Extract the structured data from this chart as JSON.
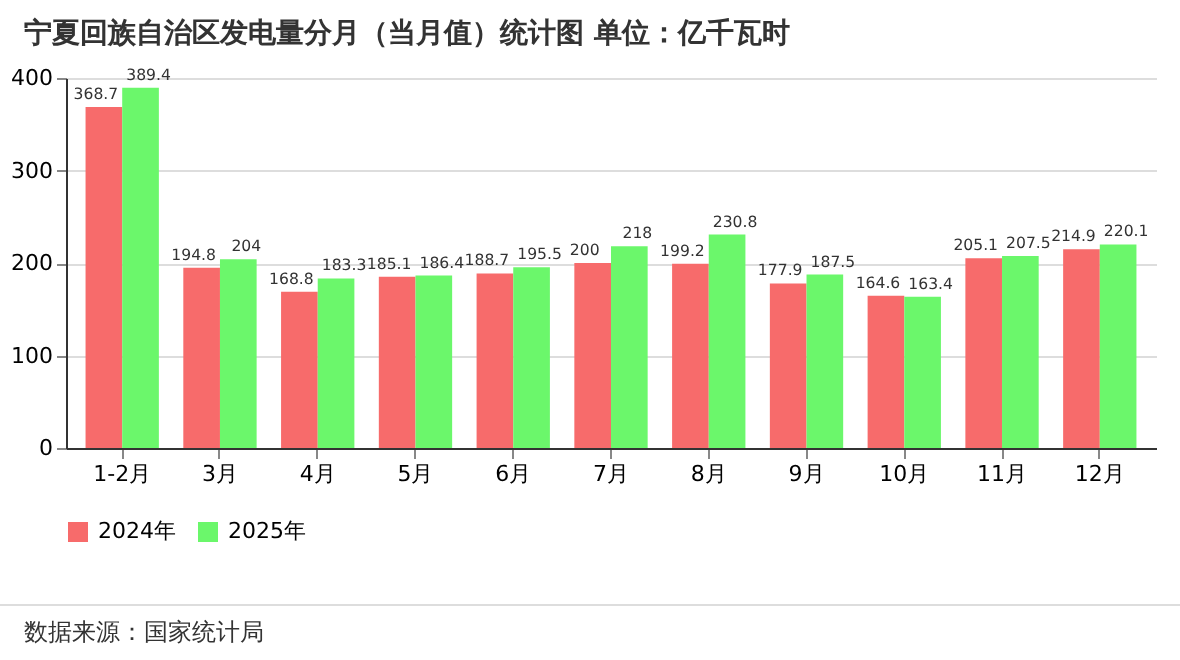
{
  "chart_data": {
    "type": "bar",
    "title": "宁夏回族自治区发电量分月（当月值）统计图 单位：亿千瓦时",
    "categories": [
      "1-2月",
      "3月",
      "4月",
      "5月",
      "6月",
      "7月",
      "8月",
      "9月",
      "10月",
      "11月",
      "12月"
    ],
    "series": [
      {
        "name": "2024年",
        "color": "#f76b6b",
        "values": [
          368.7,
          194.8,
          168.8,
          185.1,
          188.7,
          200,
          199.2,
          177.9,
          164.6,
          205.1,
          214.9
        ]
      },
      {
        "name": "2025年",
        "color": "#6bf76b",
        "values": [
          389.4,
          204,
          183.3,
          186.4,
          195.5,
          218,
          230.8,
          187.5,
          163.4,
          207.5,
          220.1
        ]
      }
    ],
    "ylim": [
      0,
      400
    ],
    "yticks": [
      0,
      100,
      200,
      300,
      400
    ],
    "grid": "y",
    "legend": "bottom",
    "data_labels": true,
    "annotations": [
      "数据来源：国家统计局"
    ]
  }
}
